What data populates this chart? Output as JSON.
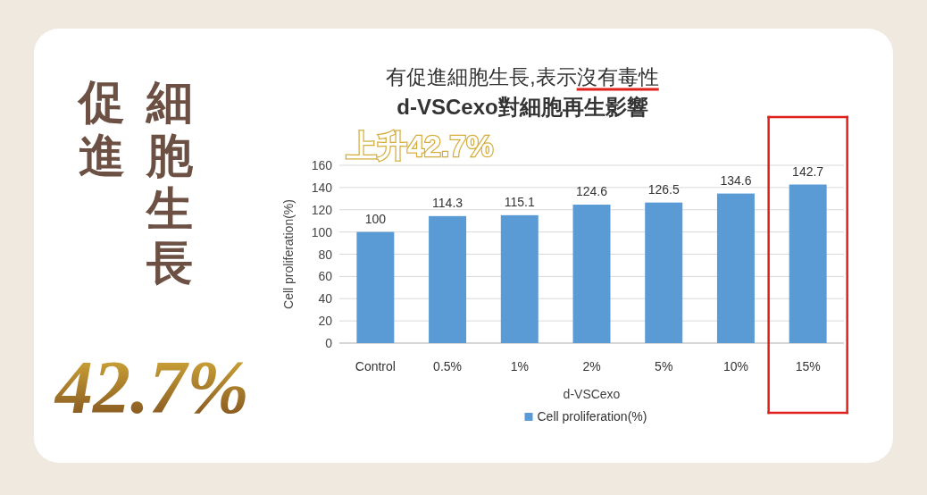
{
  "chart_data": {
    "type": "bar",
    "title": "有促進細胞生長,表示沒有毒性",
    "subtitle": "d-VSCexo對細胞再生影響",
    "xlabel": "d-VSCexo",
    "ylabel": "Cell proliferation(%)",
    "categories": [
      "Control",
      "0.5%",
      "1%",
      "2%",
      "5%",
      "10%",
      "15%"
    ],
    "series": [
      {
        "name": "Cell proliferation(%)",
        "color": "#5b9bd5",
        "values": [
          100,
          114.3,
          115.1,
          124.6,
          126.5,
          134.6,
          142.7
        ]
      }
    ],
    "ylim": [
      0,
      160
    ],
    "yticks": [
      0,
      20,
      40,
      60,
      80,
      100,
      120,
      140,
      160
    ],
    "grid": "y",
    "legend": "bottom",
    "data_labels": true,
    "annotations": [
      "促進",
      "細胞生長",
      "上升42.7%",
      "42.7%"
    ]
  }
}
